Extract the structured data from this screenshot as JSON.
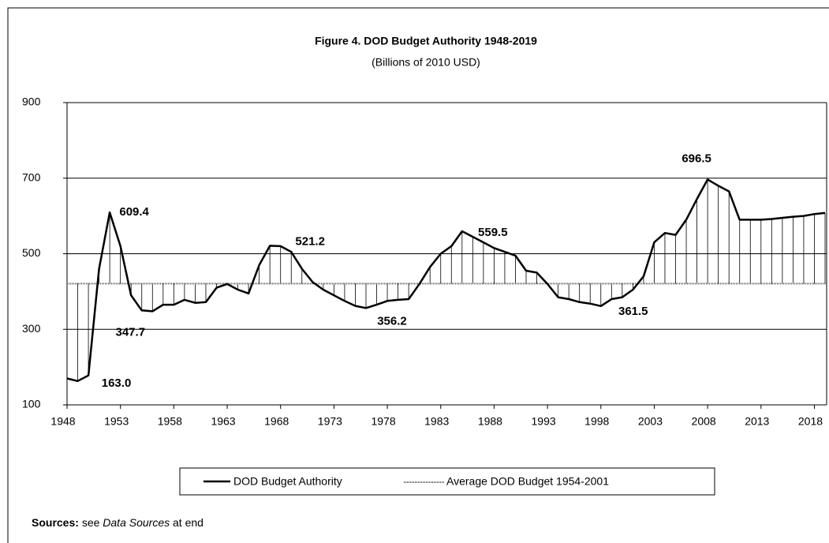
{
  "chart_data": {
    "type": "line",
    "title": "Figure 4. DOD Budget Authority 1948-2019",
    "subtitle": "(Billions of 2010 USD)",
    "x": [
      1948,
      1949,
      1950,
      1951,
      1952,
      1953,
      1954,
      1955,
      1956,
      1957,
      1958,
      1959,
      1960,
      1961,
      1962,
      1963,
      1964,
      1965,
      1966,
      1967,
      1968,
      1969,
      1970,
      1971,
      1972,
      1973,
      1974,
      1975,
      1976,
      1977,
      1978,
      1979,
      1980,
      1981,
      1982,
      1983,
      1984,
      1985,
      1986,
      1987,
      1988,
      1989,
      1990,
      1991,
      1992,
      1993,
      1994,
      1995,
      1996,
      1997,
      1998,
      1999,
      2000,
      2001,
      2002,
      2003,
      2004,
      2005,
      2006,
      2007,
      2008,
      2009,
      2010,
      2011,
      2012,
      2013,
      2014,
      2015,
      2016,
      2017,
      2018,
      2019
    ],
    "series": [
      {
        "name": "DOD Budget Authority",
        "color": "#000000",
        "values": [
          170,
          163.0,
          178,
          460,
          609.4,
          520,
          390,
          350,
          347.7,
          365,
          365,
          378,
          370,
          372,
          410,
          420,
          405,
          395,
          470,
          521.2,
          520,
          505,
          460,
          425,
          405,
          390,
          375,
          362,
          356.2,
          365,
          375,
          378,
          380,
          420,
          465,
          500,
          520,
          559.5,
          545,
          530,
          515,
          505,
          495,
          455,
          450,
          420,
          385,
          380,
          372,
          368,
          361.5,
          380,
          385,
          405,
          440,
          530,
          555,
          550,
          590,
          645,
          696.5,
          680,
          665,
          590,
          590,
          590,
          592,
          595,
          598,
          600,
          605,
          608
        ]
      },
      {
        "name": "Average DOD Budget 1954-2001",
        "color": "#555555",
        "value": 421
      }
    ],
    "annotations": [
      {
        "text": "609.4",
        "x": 1952
      },
      {
        "text": "347.7",
        "x": 1956
      },
      {
        "text": "163.0",
        "x": 1949
      },
      {
        "text": "521.2",
        "x": 1967
      },
      {
        "text": "356.2",
        "x": 1976
      },
      {
        "text": "559.5",
        "x": 1985
      },
      {
        "text": "361.5",
        "x": 1998
      },
      {
        "text": "696.5",
        "x": 2008
      }
    ],
    "xlim": [
      1948,
      2019
    ],
    "xticks": [
      1948,
      1953,
      1958,
      1963,
      1968,
      1973,
      1978,
      1983,
      1988,
      1993,
      1998,
      2003,
      2008,
      2013,
      2018
    ],
    "ylim": [
      100,
      900
    ],
    "yticks": [
      100,
      300,
      500,
      700,
      900
    ],
    "grid": true,
    "source": {
      "label": "Sources:",
      "text1": "see",
      "italic": "Data Sources",
      "text2": "at end"
    }
  }
}
